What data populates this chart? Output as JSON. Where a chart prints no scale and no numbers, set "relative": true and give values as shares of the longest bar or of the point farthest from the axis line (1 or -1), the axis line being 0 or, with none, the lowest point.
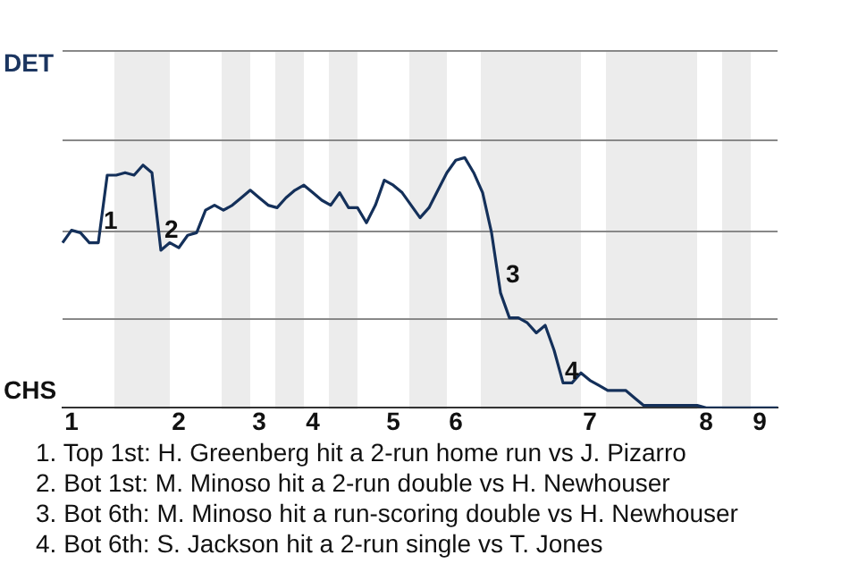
{
  "chart_data": {
    "type": "line",
    "relative": true,
    "categories": [
      null,
      "1",
      null,
      null,
      null,
      null,
      null,
      null,
      null,
      null,
      null,
      null,
      null,
      "2",
      null,
      null,
      null,
      null,
      null,
      null,
      null,
      null,
      "3",
      null,
      null,
      null,
      null,
      null,
      "4",
      null,
      null,
      null,
      null,
      null,
      null,
      null,
      null,
      "5",
      null,
      null,
      null,
      null,
      null,
      null,
      "6",
      null,
      null,
      null,
      null,
      null,
      null,
      null,
      null,
      null,
      null,
      null,
      null,
      null,
      null,
      "7",
      null,
      null,
      null,
      null,
      null,
      null,
      null,
      null,
      null,
      null,
      null,
      null,
      "8",
      null,
      null,
      null,
      null,
      null,
      "9",
      null,
      null
    ],
    "series": [
      {
        "color": "#14305a",
        "values": [
          0.66,
          0.71,
          0.7,
          0.66,
          0.66,
          0.93,
          0.93,
          0.94,
          0.93,
          0.97,
          0.94,
          0.63,
          0.66,
          0.64,
          0.69,
          0.7,
          0.79,
          0.81,
          0.79,
          0.81,
          0.84,
          0.87,
          0.84,
          0.81,
          0.8,
          0.84,
          0.87,
          0.89,
          0.86,
          0.83,
          0.81,
          0.86,
          0.8,
          0.8,
          0.74,
          0.81,
          0.91,
          0.89,
          0.86,
          0.81,
          0.76,
          0.8,
          0.87,
          0.94,
          0.99,
          1,
          0.94,
          0.86,
          0.7,
          0.46,
          0.36,
          0.36,
          0.34,
          0.3,
          0.33,
          0.23,
          0.1,
          0.1,
          0.14,
          0.11,
          0.09,
          0.07,
          0.07,
          0.07,
          0.04,
          0.01,
          0.01,
          0.01,
          0.01,
          0.01,
          0.01,
          0.01,
          0,
          0,
          0,
          0,
          0,
          0,
          0,
          0,
          0
        ]
      }
    ],
    "annotations": [
      "DET",
      "CHS",
      "1",
      "2",
      "3",
      "4",
      "1. Top 1st: H. Greenberg hit a 2-run home run vs J. Pizarro",
      "2. Bot 1st: M. Minoso hit a 2-run double vs H. Newhouser",
      "3. Bot 6th: M. Minoso hit a run-scoring double vs H. Newhouser",
      "4. Bot 6th: S. Jackson hit a 2-run single vs T. Jones"
    ],
    "ref_lines": [
      {
        "axis": "y",
        "value": 0.36,
        "label": null,
        "color": "#888888"
      },
      {
        "axis": "y",
        "value": 0.71,
        "label": null,
        "color": "#888888"
      },
      {
        "axis": "y",
        "value": 1.07,
        "label": null,
        "color": "#888888"
      },
      {
        "axis": "y",
        "value": 1.43,
        "label": null,
        "color": "#888888"
      }
    ],
    "marker": "none",
    "line_style": "solid",
    "legend": false
  }
}
